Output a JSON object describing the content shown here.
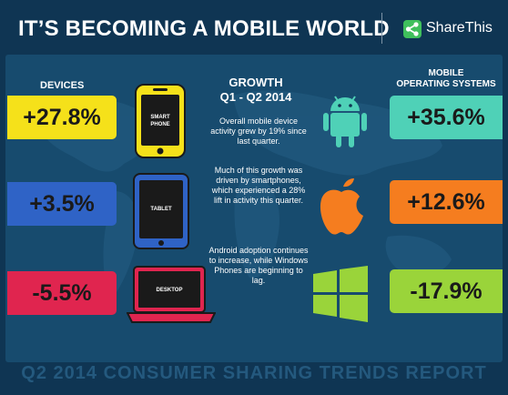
{
  "header": {
    "title": "IT’S BECOMING A MOBILE WORLD",
    "brand": "ShareThis",
    "brand_icon": "share-icon"
  },
  "devices": {
    "heading": "DEVICES",
    "items": [
      {
        "value": "+27.8%",
        "label": "SMART\nPHONE",
        "icon": "smartphone-icon",
        "color": "#f5e11a"
      },
      {
        "value": "+3.5%",
        "label": "TABLET",
        "icon": "tablet-icon",
        "color": "#2f63c6"
      },
      {
        "value": "-5.5%",
        "label": "DESKTOP",
        "icon": "laptop-icon",
        "color": "#e0254f"
      }
    ]
  },
  "growth": {
    "heading_line1": "GROWTH",
    "heading_line2": "Q1 - Q2 2014",
    "paragraphs": [
      "Overall mobile device activity grew by 19% since last quarter.",
      "Much of this growth was driven by smartphones, which experienced a 28% lift in activity this quarter.",
      "Android adoption continues to increase, while Windows Phones are beginning to lag."
    ]
  },
  "os": {
    "heading": "MOBILE\nOPERATING SYSTEMS",
    "items": [
      {
        "value": "+35.6%",
        "icon": "android-icon",
        "color": "#4fd1b7"
      },
      {
        "value": "+12.6%",
        "icon": "apple-icon",
        "color": "#f57d1f"
      },
      {
        "value": "-17.9%",
        "icon": "windows-icon",
        "color": "#9ad43a"
      }
    ]
  },
  "footer": {
    "text": "Q2 2014 CONSUMER SHARING TRENDS REPORT"
  }
}
